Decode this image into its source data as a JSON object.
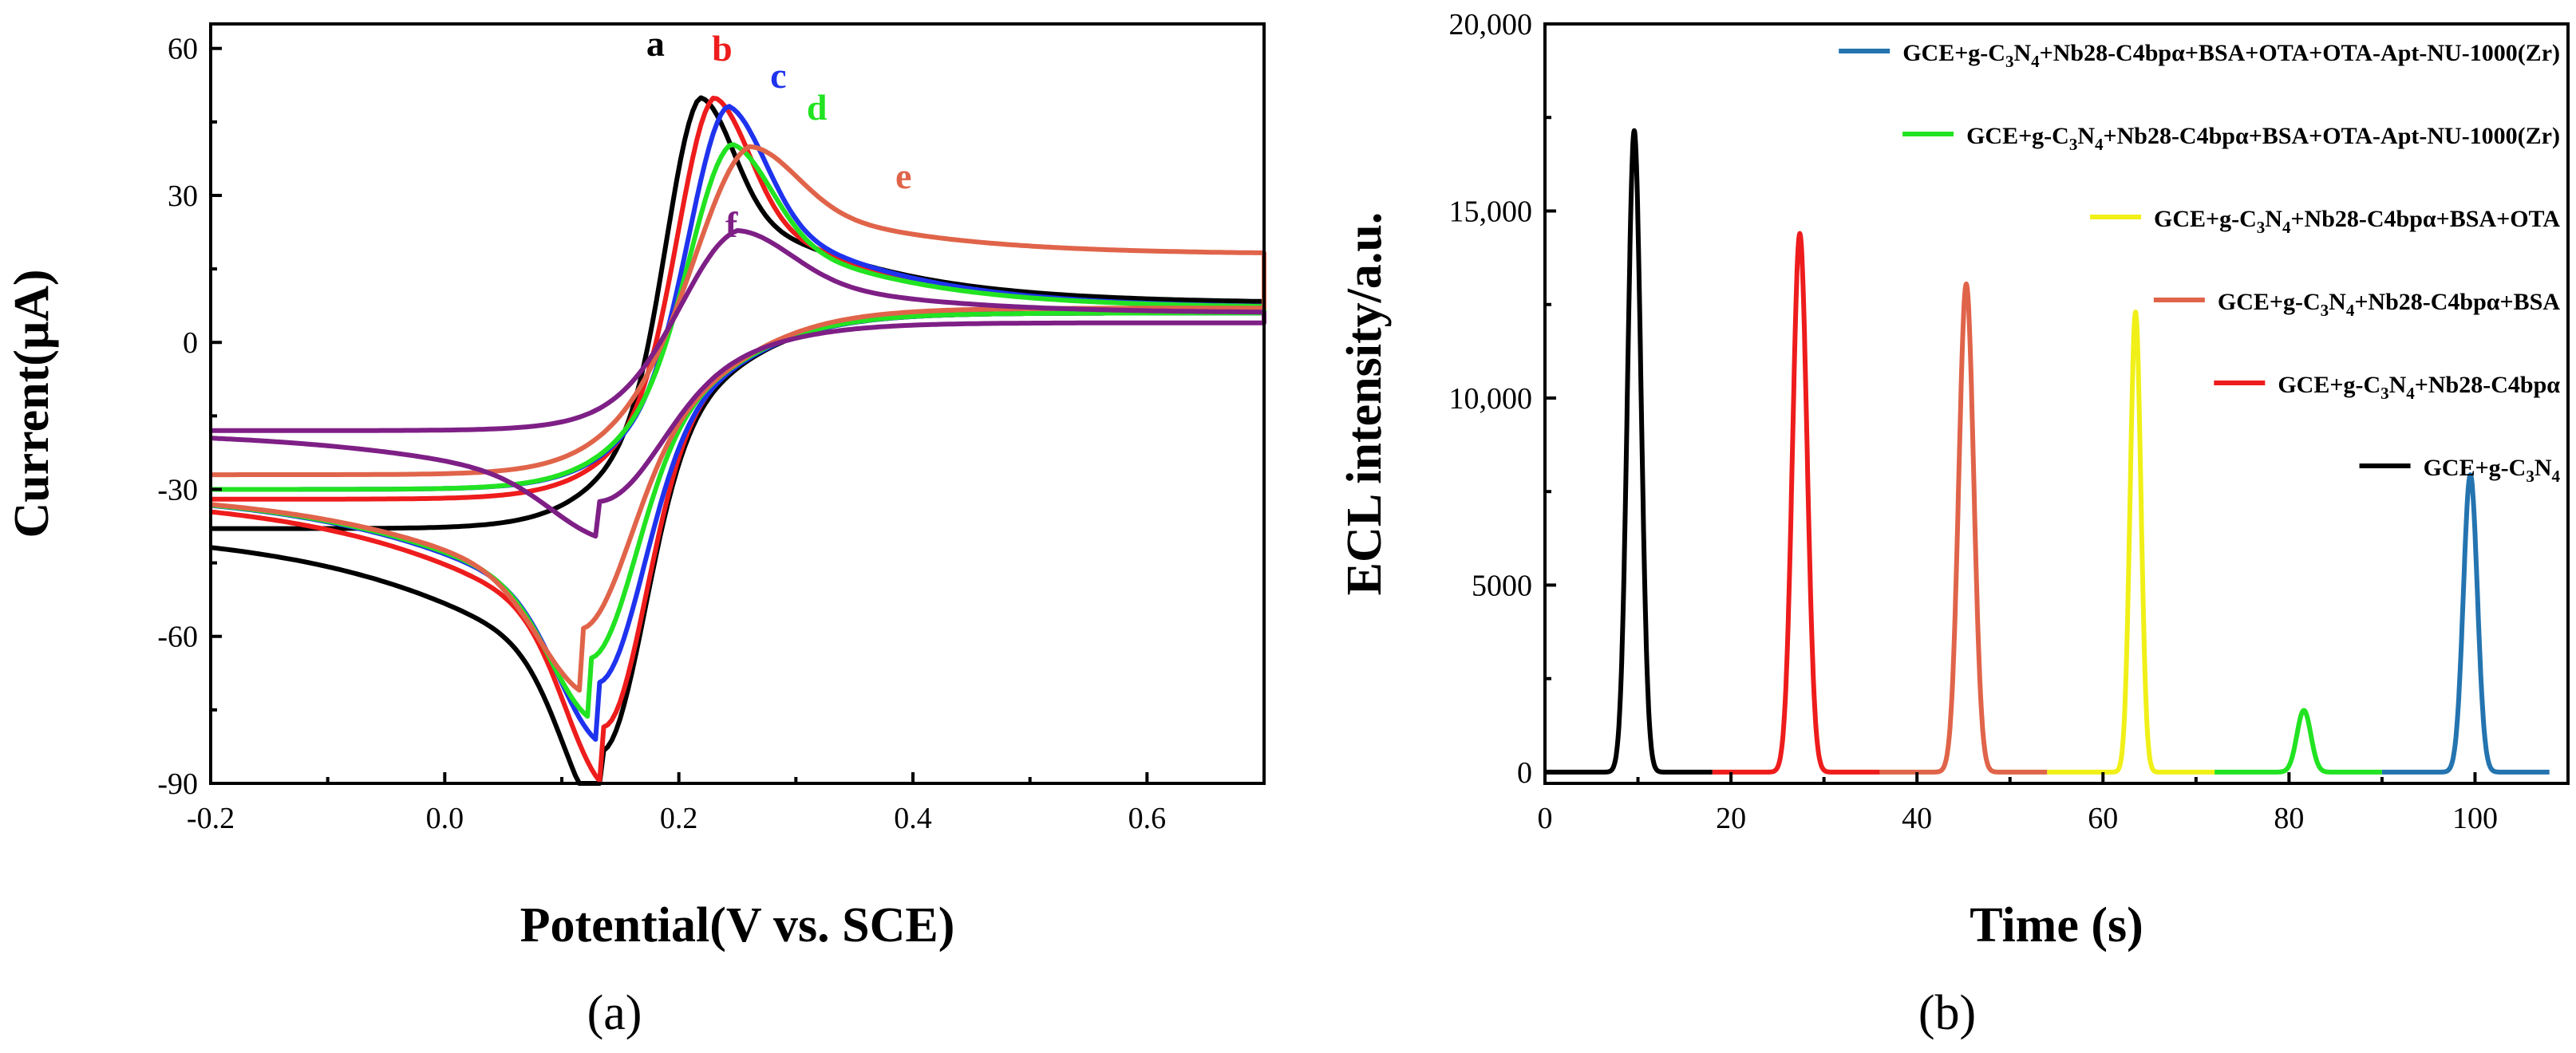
{
  "chart_data": [
    {
      "type": "line",
      "panel_label": "(a)",
      "xlabel": "Potential(V vs. SCE)",
      "ylabel": "Current(μA)",
      "xlim": [
        -0.2,
        0.7
      ],
      "ylim": [
        -90,
        65
      ],
      "x_ticks": [
        -0.2,
        0.0,
        0.2,
        0.4,
        0.6
      ],
      "x_tick_labels": [
        "-0.2",
        "0.0",
        "0.2",
        "0.4",
        "0.6"
      ],
      "y_ticks": [
        -90,
        -60,
        -30,
        0,
        30,
        60
      ],
      "y_tick_labels": [
        "-90",
        "-60",
        "-30",
        "0",
        "30",
        "60"
      ],
      "grid": false,
      "legend": "none",
      "series": [
        {
          "name": "a",
          "color": "#000000",
          "ipa": 60.5,
          "epa": 0.218,
          "ipc": -83.5,
          "epc": 0.133,
          "forward_start": -38,
          "forward_end": 9,
          "reverse_end": -38,
          "width_a": 0.028,
          "width_c": 0.034,
          "baseline_fwd": 8,
          "baseline_rev": 6
        },
        {
          "name": "b",
          "color": "#ee1c1c",
          "ipa": 58,
          "epa": 0.23,
          "ipc": -78.5,
          "epc": 0.135,
          "forward_start": -32,
          "forward_end": 9,
          "reverse_end": -31,
          "width_a": 0.03,
          "width_c": 0.034,
          "baseline_fwd": 7,
          "baseline_rev": 6
        },
        {
          "name": "c",
          "color": "#1f33ee",
          "ipa": 54.5,
          "epa": 0.242,
          "ipc": -69.5,
          "epc": 0.13,
          "forward_start": -30,
          "forward_end": 10,
          "reverse_end": -30,
          "width_a": 0.032,
          "width_c": 0.036,
          "baseline_fwd": 7,
          "baseline_rev": 6
        },
        {
          "name": "d",
          "color": "#22e322",
          "ipa": 46,
          "epa": 0.245,
          "ipc": -64.5,
          "epc": 0.123,
          "forward_start": -30,
          "forward_end": 10,
          "reverse_end": -30,
          "width_a": 0.034,
          "width_c": 0.036,
          "baseline_fwd": 7,
          "baseline_rev": 6
        },
        {
          "name": "e",
          "color": "#e0644a",
          "ipa": 45,
          "epa": 0.26,
          "ipc": -58.5,
          "epc": 0.115,
          "forward_start": -27,
          "forward_end": 19,
          "reverse_end": -30,
          "width_a": 0.04,
          "width_c": 0.038,
          "baseline_fwd": 18,
          "baseline_rev": 7
        },
        {
          "name": "f",
          "color": "#7e1f86",
          "ipa": 26.5,
          "epa": 0.25,
          "ipc": -32.5,
          "epc": 0.13,
          "forward_start": -18,
          "forward_end": 8,
          "reverse_end": -18,
          "width_a": 0.045,
          "width_c": 0.045,
          "baseline_fwd": 6,
          "baseline_rev": 4
        }
      ],
      "curve_labels": [
        {
          "text": "a",
          "color": "#000000",
          "x": 0.18,
          "y": 58.5
        },
        {
          "text": "b",
          "color": "#ee1c1c",
          "x": 0.237,
          "y": 57.5
        },
        {
          "text": "c",
          "color": "#1f33ee",
          "x": 0.285,
          "y": 52
        },
        {
          "text": "d",
          "color": "#22e322",
          "x": 0.318,
          "y": 45.5
        },
        {
          "text": "e",
          "color": "#e0644a",
          "x": 0.392,
          "y": 31.5
        },
        {
          "text": "f",
          "color": "#7e1f86",
          "x": 0.245,
          "y": 21.5
        }
      ]
    },
    {
      "type": "line",
      "panel_label": "(b)",
      "xlabel": "Time (s)",
      "ylabel": "ECL intensity/a.u.",
      "xlim": [
        0,
        110
      ],
      "ylim": [
        -300,
        20000
      ],
      "x_ticks": [
        0,
        20,
        40,
        60,
        80,
        100
      ],
      "x_tick_labels": [
        "0",
        "20",
        "40",
        "60",
        "80",
        "100"
      ],
      "y_ticks": [
        0,
        5000,
        10000,
        15000,
        20000
      ],
      "y_tick_labels": [
        "0",
        "5000",
        "10,000",
        "15,000",
        "20,000"
      ],
      "grid": false,
      "legend": "top-right",
      "series": [
        {
          "name": "GCE+g-C3N4+Nb28-C4bpα+BSA+OTA+OTA-Apt-NU-1000(Zr)",
          "legend_parts": [
            [
              "GCE+g-C",
              ""
            ],
            [
              "3",
              "sub"
            ],
            [
              "N",
              ""
            ],
            [
              "4",
              "sub"
            ],
            [
              "+Nb28-C4bpα+BSA+OTA+OTA-Apt-NU-1000(Zr)",
              ""
            ]
          ],
          "color": "#2474b0",
          "t_start": 90,
          "t_end": 108,
          "peak_t": 99.5,
          "peak": 7950,
          "width": 0.75
        },
        {
          "name": "GCE+g-C3N4+Nb28-C4bpα+BSA+OTA-Apt-NU-1000(Zr)",
          "legend_parts": [
            [
              "GCE+g-C",
              ""
            ],
            [
              "3",
              "sub"
            ],
            [
              "N",
              ""
            ],
            [
              "4",
              "sub"
            ],
            [
              "+Nb28-C4bpα+BSA+OTA-Apt-NU-1000(Zr)",
              ""
            ]
          ],
          "color": "#22e322",
          "t_start": 72,
          "t_end": 90,
          "peak_t": 81.6,
          "peak": 1650,
          "width": 0.75
        },
        {
          "name": "GCE+g-C3N4+Nb28-C4bpα+BSA+OTA",
          "legend_parts": [
            [
              "GCE+g-C",
              ""
            ],
            [
              "3",
              "sub"
            ],
            [
              "N",
              ""
            ],
            [
              "4",
              "sub"
            ],
            [
              "+Nb28-C4bpα+BSA+OTA",
              ""
            ]
          ],
          "color": "#f0f018",
          "t_start": 54,
          "t_end": 72,
          "peak_t": 63.5,
          "peak": 12300,
          "width": 0.58
        },
        {
          "name": "GCE+g-C3N4+Nb28-C4bpα+BSA",
          "legend_parts": [
            [
              "GCE+g-C",
              ""
            ],
            [
              "3",
              "sub"
            ],
            [
              "N",
              ""
            ],
            [
              "4",
              "sub"
            ],
            [
              "+Nb28-C4bpα+BSA",
              ""
            ]
          ],
          "color": "#e0644a",
          "t_start": 36,
          "t_end": 54,
          "peak_t": 45.3,
          "peak": 13050,
          "width": 0.8
        },
        {
          "name": "GCE+g-C3N4+Nb28-C4bpα",
          "legend_parts": [
            [
              "GCE+g-C",
              ""
            ],
            [
              "3",
              "sub"
            ],
            [
              "N",
              ""
            ],
            [
              "4",
              "sub"
            ],
            [
              "+Nb28-C4bpα",
              ""
            ]
          ],
          "color": "#ee1c1c",
          "t_start": 18,
          "t_end": 36,
          "peak_t": 27.4,
          "peak": 14400,
          "width": 0.78
        },
        {
          "name": "GCE+g-C3N4",
          "legend_parts": [
            [
              "GCE+g-C",
              ""
            ],
            [
              "3",
              "sub"
            ],
            [
              "N",
              ""
            ],
            [
              "4",
              "sub"
            ]
          ],
          "color": "#000000",
          "t_start": 0,
          "t_end": 18,
          "peak_t": 9.6,
          "peak": 17150,
          "width": 0.72
        }
      ]
    }
  ]
}
